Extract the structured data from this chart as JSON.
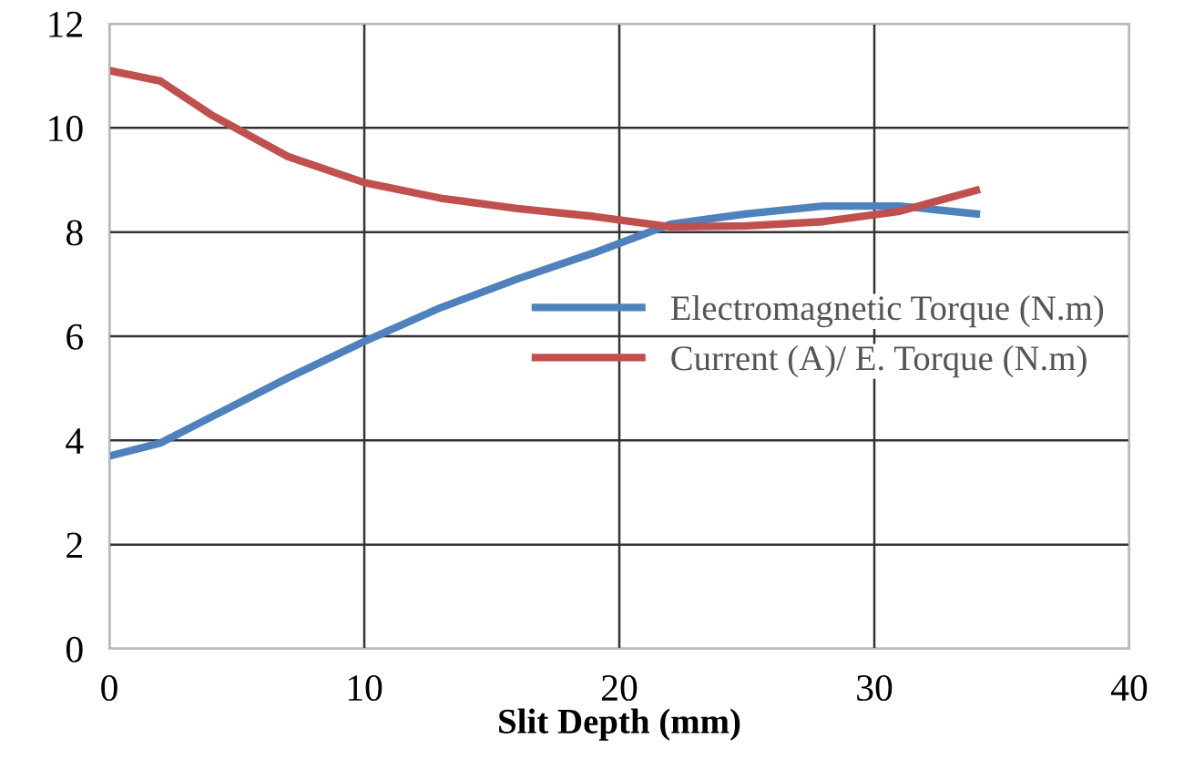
{
  "chart_data": {
    "type": "line",
    "xlabel": "Slit Depth (mm)",
    "x": [
      0,
      2,
      4,
      7,
      10,
      13,
      16,
      19,
      22,
      25,
      28,
      31,
      34
    ],
    "series": [
      {
        "name": "Electromagnetic Torque (N.m)",
        "color": "#4f81bd",
        "values": [
          3.7,
          3.95,
          4.45,
          5.2,
          5.9,
          6.55,
          7.1,
          7.6,
          8.15,
          8.35,
          8.5,
          8.5,
          8.35
        ]
      },
      {
        "name": "Current (A)/ E. Torque (N.m)",
        "color": "#c0504d",
        "values": [
          11.1,
          10.9,
          10.25,
          9.45,
          8.95,
          8.65,
          8.45,
          8.3,
          8.1,
          8.12,
          8.2,
          8.4,
          8.8
        ]
      }
    ],
    "xlim": [
      0,
      40
    ],
    "xticks": [
      0,
      10,
      20,
      30,
      40
    ],
    "ylim": [
      0,
      12
    ],
    "yticks": [
      0,
      2,
      4,
      6,
      8,
      10,
      12
    ],
    "grid": true,
    "legend": "center right",
    "marker": "none",
    "line_style": "solid"
  }
}
